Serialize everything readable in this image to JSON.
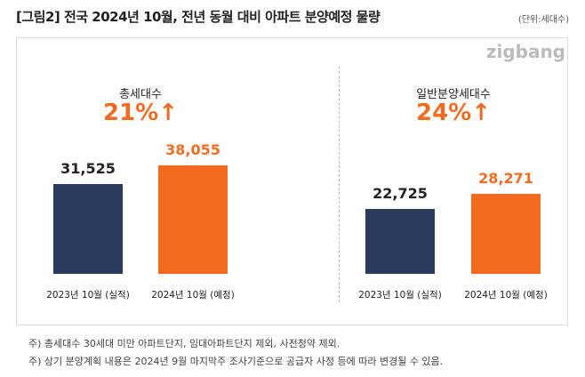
{
  "header": {
    "title": "[그림2] 전국 2024년 10월, 전년 동월 대비 아파트 분양예정 물량",
    "unit": "(단위:세대수)",
    "logo": "zigbang"
  },
  "colors": {
    "2023": "#283a5e",
    "2024": "#f26b21"
  },
  "chart_data": [
    {
      "type": "bar",
      "title": "총세대수",
      "growth": "21%↑",
      "categories": [
        "2023년 10월 (실적)",
        "2024년 10월 (예정)"
      ],
      "values": [
        31525,
        38055
      ],
      "labels": [
        "31,525",
        "38,055"
      ],
      "ylim": [
        0,
        40000
      ]
    },
    {
      "type": "bar",
      "title": "일반분양세대수",
      "growth": "24%↑",
      "categories": [
        "2023년 10월 (실적)",
        "2024년 10월 (예정)"
      ],
      "values": [
        22725,
        28271
      ],
      "labels": [
        "22,725",
        "28,271"
      ],
      "ylim": [
        0,
        40000
      ]
    }
  ],
  "notes": [
    "주) 총세대수 30세대 미만 아파트단지, 임대아파트단지 제외, 사전청약 제외.",
    "주) 상기 분양계획 내용은 2024년 9월 마지막주  조사기준으로 공급자 사정 등에 따라 변경될 수 있음."
  ]
}
